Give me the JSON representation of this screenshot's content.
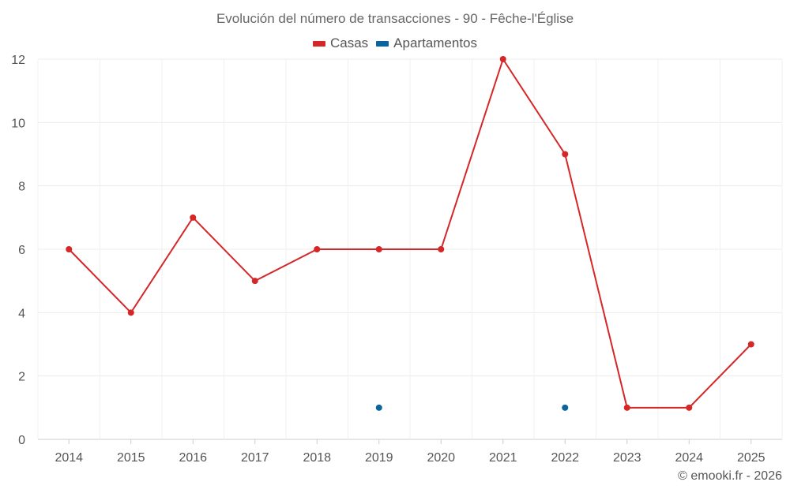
{
  "chart_data": {
    "type": "line",
    "title": "Evolución del número de transacciones - 90 - Fêche-l'Église",
    "categories": [
      "2014",
      "2015",
      "2016",
      "2017",
      "2018",
      "2019",
      "2020",
      "2021",
      "2022",
      "2023",
      "2024",
      "2025"
    ],
    "series": [
      {
        "name": "Casas",
        "color": "#d62728",
        "values": [
          6,
          4,
          7,
          5,
          6,
          6,
          6,
          12,
          9,
          1,
          1,
          3
        ]
      },
      {
        "name": "Apartamentos",
        "color": "#0a64a0",
        "values": [
          null,
          null,
          null,
          null,
          null,
          1,
          null,
          null,
          1,
          null,
          null,
          null
        ]
      }
    ],
    "ylim": [
      0,
      12
    ],
    "yticks": [
      0,
      2,
      4,
      6,
      8,
      10,
      12
    ],
    "xlabel": "",
    "ylabel": "",
    "grid": true,
    "legend": "top-center"
  },
  "credit": "© emooki.fr - 2026"
}
